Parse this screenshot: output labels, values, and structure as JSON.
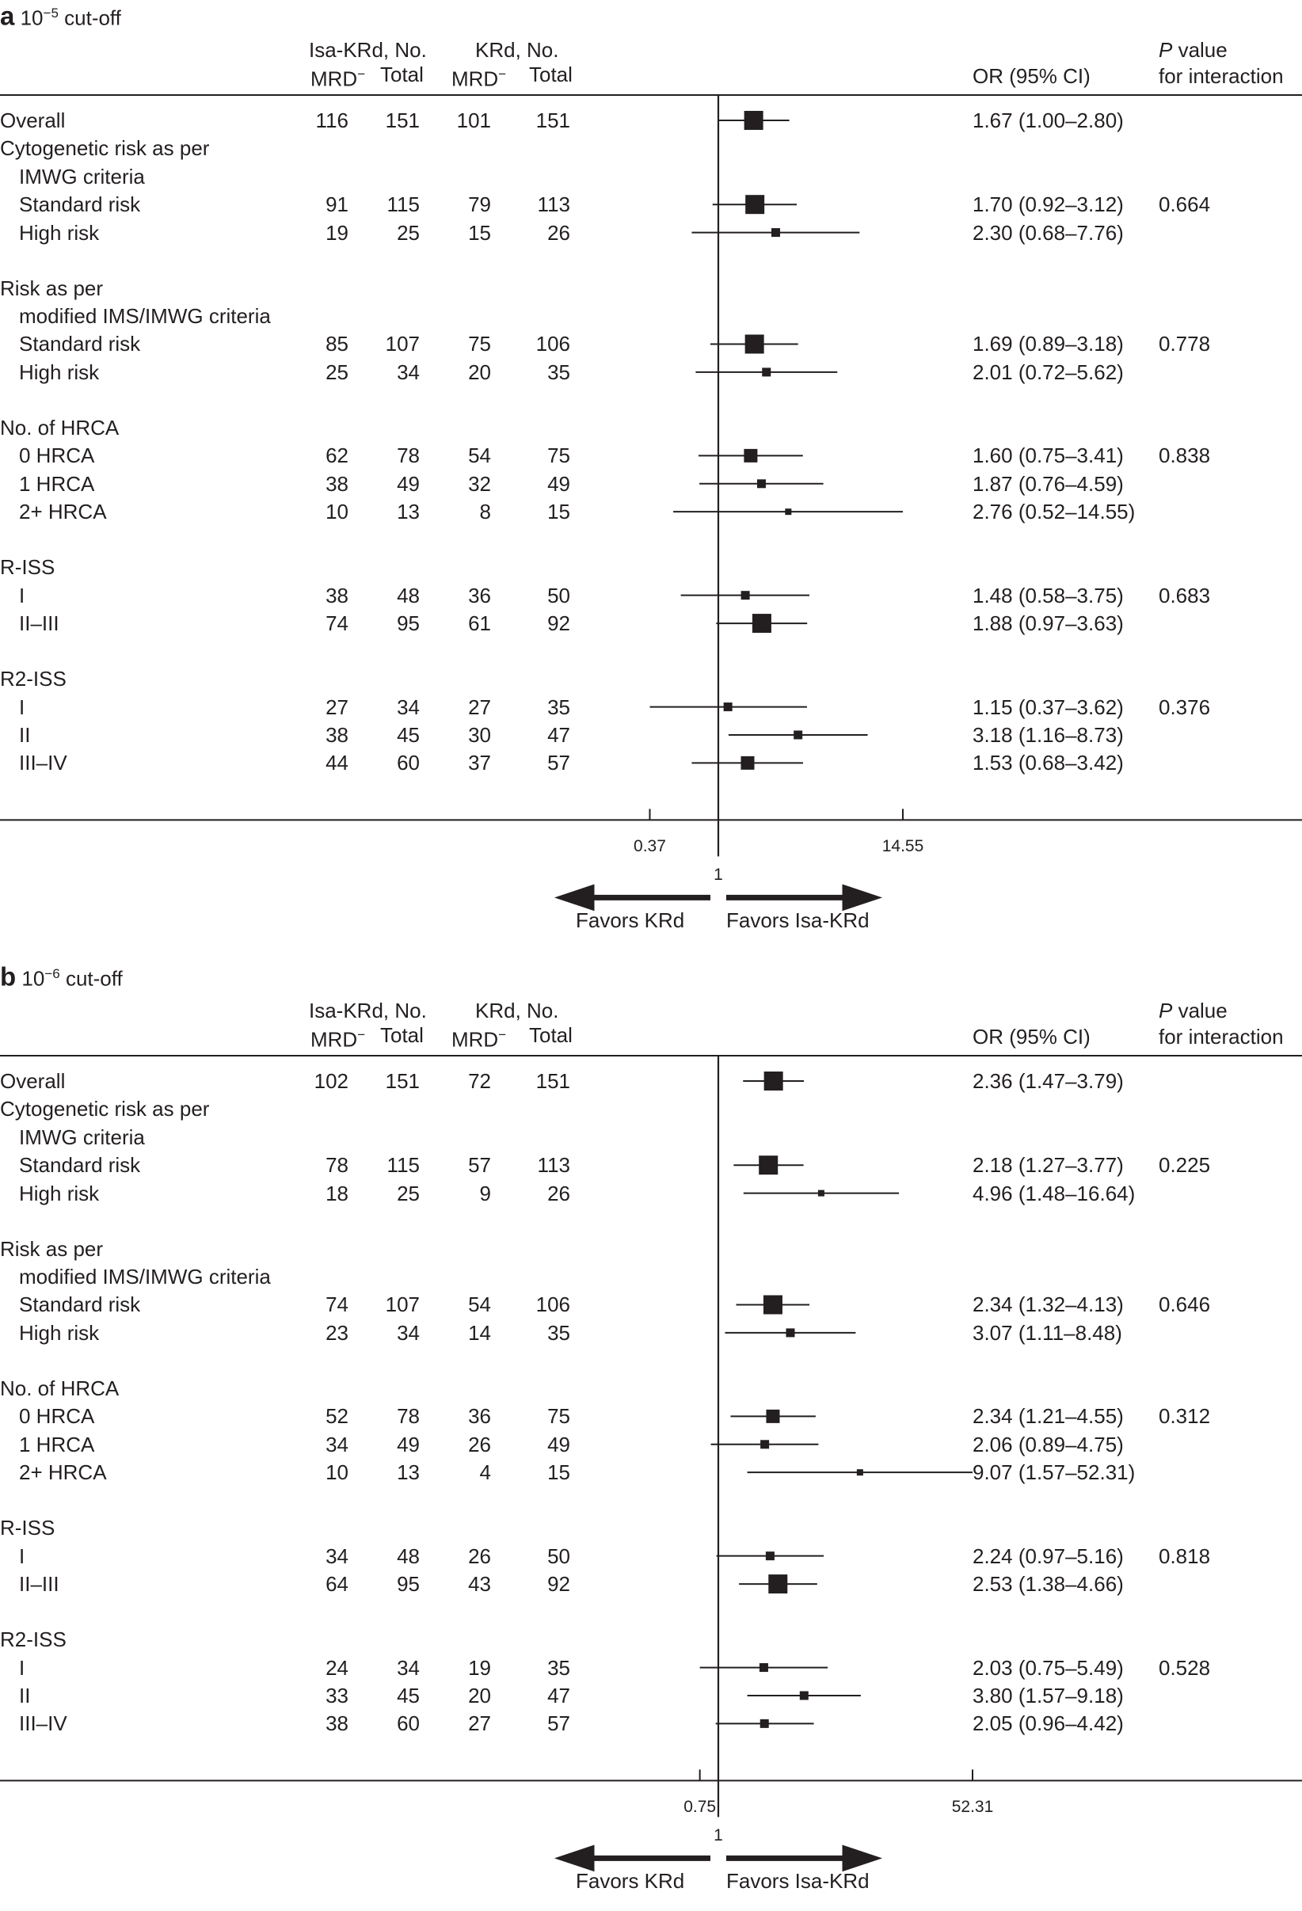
{
  "chart_data": [
    {
      "type": "forest",
      "panel_letter": "a",
      "title_prefix": "10",
      "title_exp": "−5",
      "title_suffix": " cut-off",
      "columns": {
        "group1": "Isa-KRd, No.",
        "group2": "KRd, No.",
        "mrd": "MRD",
        "mrd_sup": "−",
        "total": "Total",
        "or": "OR (95% CI)",
        "p_italic": "P",
        "p_rest": " value",
        "p_line2": "for interaction"
      },
      "axis": {
        "ref": 1,
        "ref_label": "1",
        "ticks": [
          {
            "value": 0.37,
            "label": "0.37"
          },
          {
            "value": 14.55,
            "label": "14.55"
          }
        ],
        "scale": "log"
      },
      "favors_left": "Favors KRd",
      "favors_right": "Favors Isa-KRd",
      "rows": [
        {
          "label": "Overall",
          "level": 0,
          "isa_mrd": "116",
          "isa_total": "151",
          "krd_mrd": "101",
          "krd_total": "151",
          "or_text": "1.67 (1.00–2.80)",
          "or": 1.67,
          "lo": 1.0,
          "hi": 2.8,
          "p": "",
          "size": "large"
        },
        {
          "label": "Cytogenetic risk as per",
          "level": 0,
          "heading": true
        },
        {
          "label": "IMWG criteria",
          "level": 1,
          "heading": true
        },
        {
          "label": "Standard risk",
          "level": 1,
          "isa_mrd": "91",
          "isa_total": "115",
          "krd_mrd": "79",
          "krd_total": "113",
          "or_text": "1.70 (0.92–3.12)",
          "or": 1.7,
          "lo": 0.92,
          "hi": 3.12,
          "p": "0.664",
          "size": "large"
        },
        {
          "label": "High risk",
          "level": 1,
          "isa_mrd": "19",
          "isa_total": "25",
          "krd_mrd": "15",
          "krd_total": "26",
          "or_text": "2.30 (0.68–7.76)",
          "or": 2.3,
          "lo": 0.68,
          "hi": 7.76,
          "p": "",
          "size": "small"
        },
        {
          "spacer": true
        },
        {
          "label": "Risk as per",
          "level": 0,
          "heading": true
        },
        {
          "label": "modified IMS/IMWG criteria",
          "level": 1,
          "heading": true
        },
        {
          "label": "Standard risk",
          "level": 1,
          "isa_mrd": "85",
          "isa_total": "107",
          "krd_mrd": "75",
          "krd_total": "106",
          "or_text": "1.69 (0.89–3.18)",
          "or": 1.69,
          "lo": 0.89,
          "hi": 3.18,
          "p": "0.778",
          "size": "large"
        },
        {
          "label": "High risk",
          "level": 1,
          "isa_mrd": "25",
          "isa_total": "34",
          "krd_mrd": "20",
          "krd_total": "35",
          "or_text": "2.01 (0.72–5.62)",
          "or": 2.01,
          "lo": 0.72,
          "hi": 5.62,
          "p": "",
          "size": "small"
        },
        {
          "spacer": true
        },
        {
          "label": "No. of HRCA",
          "level": 0,
          "heading": true
        },
        {
          "label": "0 HRCA",
          "level": 1,
          "isa_mrd": "62",
          "isa_total": "78",
          "krd_mrd": "54",
          "krd_total": "75",
          "or_text": "1.60 (0.75–3.41)",
          "or": 1.6,
          "lo": 0.75,
          "hi": 3.41,
          "p": "0.838",
          "size": "medium"
        },
        {
          "label": "1 HRCA",
          "level": 1,
          "isa_mrd": "38",
          "isa_total": "49",
          "krd_mrd": "32",
          "krd_total": "49",
          "or_text": "1.87 (0.76–4.59)",
          "or": 1.87,
          "lo": 0.76,
          "hi": 4.59,
          "p": "",
          "size": "small"
        },
        {
          "label": "2+ HRCA",
          "level": 1,
          "isa_mrd": "10",
          "isa_total": "13",
          "krd_mrd": "8",
          "krd_total": "15",
          "or_text": "2.76 (0.52–14.55)",
          "or": 2.76,
          "lo": 0.52,
          "hi": 14.55,
          "p": "",
          "size": "tiny"
        },
        {
          "spacer": true
        },
        {
          "label": "R-ISS",
          "level": 0,
          "heading": true
        },
        {
          "label": "I",
          "level": 1,
          "isa_mrd": "38",
          "isa_total": "48",
          "krd_mrd": "36",
          "krd_total": "50",
          "or_text": "1.48 (0.58–3.75)",
          "or": 1.48,
          "lo": 0.58,
          "hi": 3.75,
          "p": "0.683",
          "size": "small"
        },
        {
          "label": "II–III",
          "level": 1,
          "isa_mrd": "74",
          "isa_total": "95",
          "krd_mrd": "61",
          "krd_total": "92",
          "or_text": "1.88 (0.97–3.63)",
          "or": 1.88,
          "lo": 0.97,
          "hi": 3.63,
          "p": "",
          "size": "large"
        },
        {
          "spacer": true
        },
        {
          "label": "R2-ISS",
          "level": 0,
          "heading": true
        },
        {
          "label": "I",
          "level": 1,
          "isa_mrd": "27",
          "isa_total": "34",
          "krd_mrd": "27",
          "krd_total": "35",
          "or_text": "1.15 (0.37–3.62)",
          "or": 1.15,
          "lo": 0.37,
          "hi": 3.62,
          "p": "0.376",
          "size": "small"
        },
        {
          "label": "II",
          "level": 1,
          "isa_mrd": "38",
          "isa_total": "45",
          "krd_mrd": "30",
          "krd_total": "47",
          "or_text": "3.18 (1.16–8.73)",
          "or": 3.18,
          "lo": 1.16,
          "hi": 8.73,
          "p": "",
          "size": "small"
        },
        {
          "label": "III–IV",
          "level": 1,
          "isa_mrd": "44",
          "isa_total": "60",
          "krd_mrd": "37",
          "krd_total": "57",
          "or_text": "1.53 (0.68–3.42)",
          "or": 1.53,
          "lo": 0.68,
          "hi": 3.42,
          "p": "",
          "size": "medium"
        }
      ]
    },
    {
      "type": "forest",
      "panel_letter": "b",
      "title_prefix": "10",
      "title_exp": "−6",
      "title_suffix": " cut-off",
      "columns": {
        "group1": "Isa-KRd, No.",
        "group2": "KRd, No.",
        "mrd": "MRD",
        "mrd_sup": "−",
        "total": "Total",
        "or": "OR (95% CI)",
        "p_italic": "P",
        "p_rest": " value",
        "p_line2": "for interaction"
      },
      "axis": {
        "ref": 1,
        "ref_label": "1",
        "ticks": [
          {
            "value": 0.75,
            "label": "0.75"
          },
          {
            "value": 52.31,
            "label": "52.31"
          }
        ],
        "scale": "log"
      },
      "favors_left": "Favors KRd",
      "favors_right": "Favors Isa-KRd",
      "rows": [
        {
          "label": "Overall",
          "level": 0,
          "isa_mrd": "102",
          "isa_total": "151",
          "krd_mrd": "72",
          "krd_total": "151",
          "or_text": "2.36 (1.47–3.79)",
          "or": 2.36,
          "lo": 1.47,
          "hi": 3.79,
          "p": "",
          "size": "large"
        },
        {
          "label": "Cytogenetic risk as per",
          "level": 0,
          "heading": true
        },
        {
          "label": "IMWG criteria",
          "level": 1,
          "heading": true
        },
        {
          "label": "Standard risk",
          "level": 1,
          "isa_mrd": "78",
          "isa_total": "115",
          "krd_mrd": "57",
          "krd_total": "113",
          "or_text": "2.18 (1.27–3.77)",
          "or": 2.18,
          "lo": 1.27,
          "hi": 3.77,
          "p": "0.225",
          "size": "large"
        },
        {
          "label": "High risk",
          "level": 1,
          "isa_mrd": "18",
          "isa_total": "25",
          "krd_mrd": "9",
          "krd_total": "26",
          "or_text": "4.96 (1.48–16.64)",
          "or": 4.96,
          "lo": 1.48,
          "hi": 16.64,
          "p": "",
          "size": "tiny"
        },
        {
          "spacer": true
        },
        {
          "label": "Risk as per",
          "level": 0,
          "heading": true
        },
        {
          "label": "modified IMS/IMWG criteria",
          "level": 1,
          "heading": true
        },
        {
          "label": "Standard risk",
          "level": 1,
          "isa_mrd": "74",
          "isa_total": "107",
          "krd_mrd": "54",
          "krd_total": "106",
          "or_text": "2.34 (1.32–4.13)",
          "or": 2.34,
          "lo": 1.32,
          "hi": 4.13,
          "p": "0.646",
          "size": "large"
        },
        {
          "label": "High risk",
          "level": 1,
          "isa_mrd": "23",
          "isa_total": "34",
          "krd_mrd": "14",
          "krd_total": "35",
          "or_text": "3.07 (1.11–8.48)",
          "or": 3.07,
          "lo": 1.11,
          "hi": 8.48,
          "p": "",
          "size": "small"
        },
        {
          "spacer": true
        },
        {
          "label": "No. of HRCA",
          "level": 0,
          "heading": true
        },
        {
          "label": "0 HRCA",
          "level": 1,
          "isa_mrd": "52",
          "isa_total": "78",
          "krd_mrd": "36",
          "krd_total": "75",
          "or_text": "2.34 (1.21–4.55)",
          "or": 2.34,
          "lo": 1.21,
          "hi": 4.55,
          "p": "0.312",
          "size": "medium"
        },
        {
          "label": "1 HRCA",
          "level": 1,
          "isa_mrd": "34",
          "isa_total": "49",
          "krd_mrd": "26",
          "krd_total": "49",
          "or_text": "2.06 (0.89–4.75)",
          "or": 2.06,
          "lo": 0.89,
          "hi": 4.75,
          "p": "",
          "size": "small"
        },
        {
          "label": "2+ HRCA",
          "level": 1,
          "isa_mrd": "10",
          "isa_total": "13",
          "krd_mrd": "4",
          "krd_total": "15",
          "or_text": "9.07 (1.57–52.31)",
          "or": 9.07,
          "lo": 1.57,
          "hi": 52.31,
          "p": "",
          "size": "tiny"
        },
        {
          "spacer": true
        },
        {
          "label": "R-ISS",
          "level": 0,
          "heading": true
        },
        {
          "label": "I",
          "level": 1,
          "isa_mrd": "34",
          "isa_total": "48",
          "krd_mrd": "26",
          "krd_total": "50",
          "or_text": "2.24 (0.97–5.16)",
          "or": 2.24,
          "lo": 0.97,
          "hi": 5.16,
          "p": "0.818",
          "size": "small"
        },
        {
          "label": "II–III",
          "level": 1,
          "isa_mrd": "64",
          "isa_total": "95",
          "krd_mrd": "43",
          "krd_total": "92",
          "or_text": "2.53 (1.38–4.66)",
          "or": 2.53,
          "lo": 1.38,
          "hi": 4.66,
          "p": "",
          "size": "large"
        },
        {
          "spacer": true
        },
        {
          "label": "R2-ISS",
          "level": 0,
          "heading": true
        },
        {
          "label": "I",
          "level": 1,
          "isa_mrd": "24",
          "isa_total": "34",
          "krd_mrd": "19",
          "krd_total": "35",
          "or_text": "2.03 (0.75–5.49)",
          "or": 2.03,
          "lo": 0.75,
          "hi": 5.49,
          "p": "0.528",
          "size": "small"
        },
        {
          "label": "II",
          "level": 1,
          "isa_mrd": "33",
          "isa_total": "45",
          "krd_mrd": "20",
          "krd_total": "47",
          "or_text": "3.80 (1.57–9.18)",
          "or": 3.8,
          "lo": 1.57,
          "hi": 9.18,
          "p": "",
          "size": "small"
        },
        {
          "label": "III–IV",
          "level": 1,
          "isa_mrd": "38",
          "isa_total": "60",
          "krd_mrd": "27",
          "krd_total": "57",
          "or_text": "2.05 (0.96–4.42)",
          "or": 2.05,
          "lo": 0.96,
          "hi": 4.42,
          "p": "",
          "size": "small"
        }
      ]
    }
  ]
}
